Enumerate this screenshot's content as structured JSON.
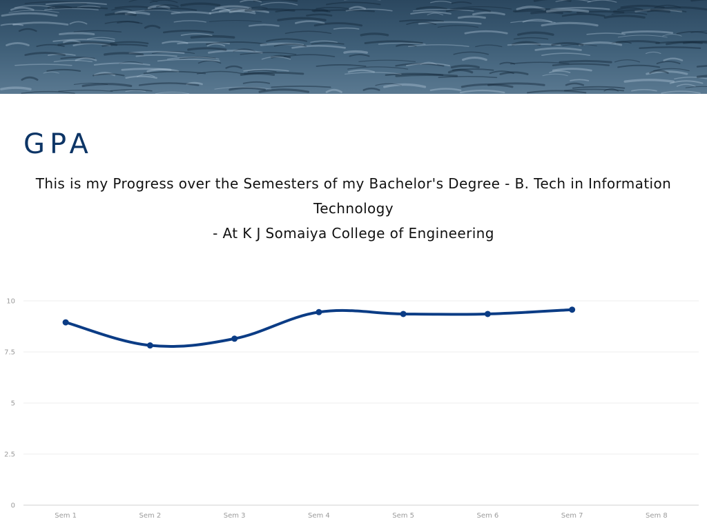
{
  "header": {
    "title": "GPA",
    "subtitle_line1": "This is my Progress over the Semesters of my Bachelor's Degree - B. Tech in Information Technology",
    "subtitle_line2": "- At K J Somaiya College of Engineering"
  },
  "colors": {
    "title": "#0d3566",
    "line": "#0b3c85",
    "grid": "#ececec",
    "axis": "#d0d0d0",
    "tick_text": "#9a9a9a"
  },
  "chart_data": {
    "type": "line",
    "title": "",
    "xlabel": "",
    "ylabel": "",
    "categories": [
      "Sem 1",
      "Sem 2",
      "Sem 3",
      "Sem 4",
      "Sem 5",
      "Sem 6",
      "Sem 7",
      "Sem 8"
    ],
    "series": [
      {
        "values": [
          8.95,
          7.82,
          8.15,
          9.45,
          9.36,
          9.36,
          9.57,
          null
        ]
      }
    ],
    "ylim": [
      0,
      10
    ],
    "yticks": [
      0,
      2.5,
      5,
      7.5,
      10
    ],
    "ytick_labels": [
      "0",
      "2.5",
      "5",
      "7.5",
      "10"
    ],
    "grid": true,
    "smooth": true,
    "legend": "none"
  }
}
